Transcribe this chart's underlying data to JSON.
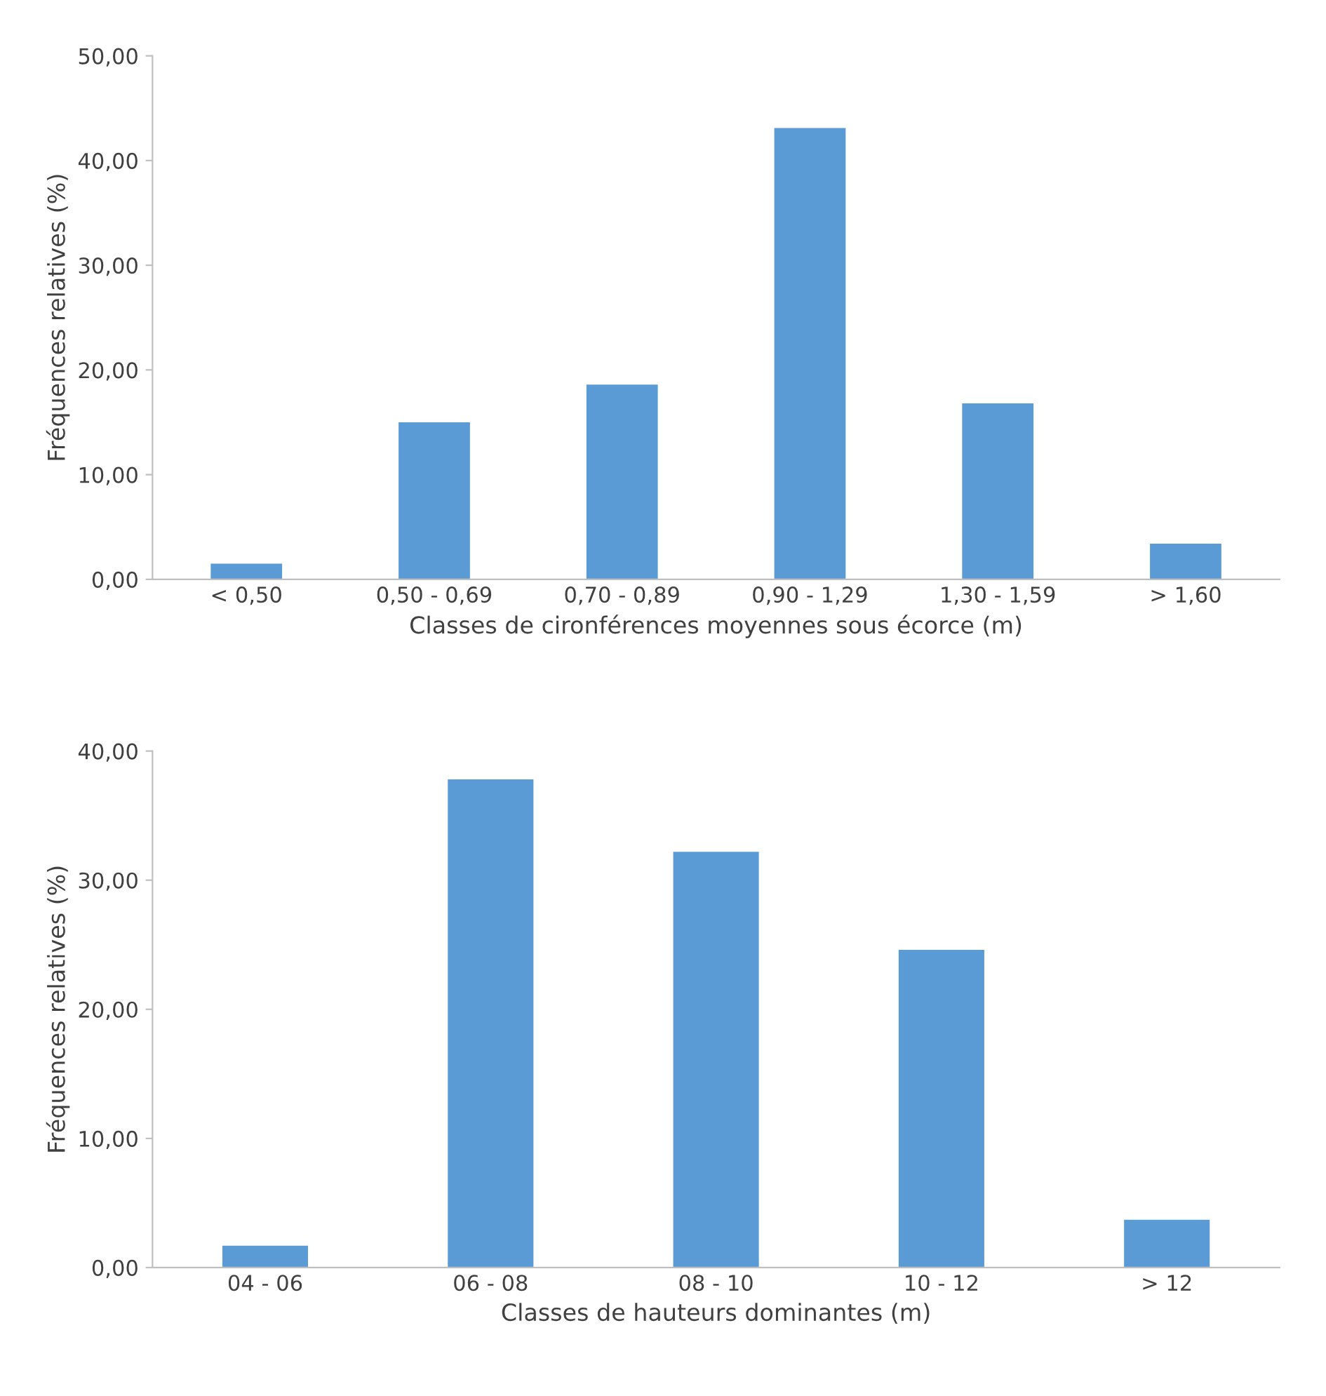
{
  "chart_data": [
    {
      "type": "bar",
      "xlabel": "Classes de cironférences moyennes sous écorce (m)",
      "ylabel": "Fréquences relatives (%)",
      "categories": [
        "< 0,50",
        "0,50 - 0,69",
        "0,70 - 0,89",
        "0,90 - 1,29",
        "1,30 - 1,59",
        "> 1,60"
      ],
      "values": [
        1.5,
        15.0,
        18.6,
        43.1,
        16.8,
        3.4
      ],
      "color": "#5b9bd5",
      "ylim": [
        0,
        50
      ],
      "yticks": [
        {
          "value": 0,
          "label": "0,00"
        },
        {
          "value": 10,
          "label": "10,00"
        },
        {
          "value": 20,
          "label": "20,00"
        },
        {
          "value": 30,
          "label": "30,00"
        },
        {
          "value": 40,
          "label": "40,00"
        },
        {
          "value": 50,
          "label": "50,00"
        }
      ],
      "grid": false
    },
    {
      "type": "bar",
      "xlabel": "Classes de hauteurs dominantes (m)",
      "ylabel": "Fréquences relatives (%)",
      "categories": [
        "04 - 06",
        "06 - 08",
        "08 - 10",
        "10 - 12",
        "> 12"
      ],
      "values": [
        1.7,
        37.8,
        32.2,
        24.6,
        3.7
      ],
      "color": "#5b9bd5",
      "ylim": [
        0,
        40
      ],
      "yticks": [
        {
          "value": 0,
          "label": "0,00"
        },
        {
          "value": 10,
          "label": "10,00"
        },
        {
          "value": 20,
          "label": "20,00"
        },
        {
          "value": 30,
          "label": "30,00"
        },
        {
          "value": 40,
          "label": "40,00"
        }
      ],
      "grid": false
    }
  ]
}
